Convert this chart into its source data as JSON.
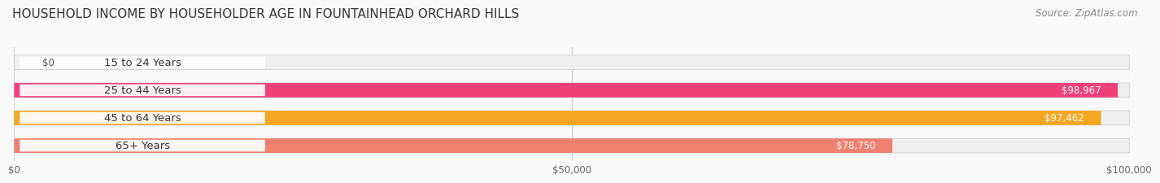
{
  "title": "HOUSEHOLD INCOME BY HOUSEHOLDER AGE IN FOUNTAINHEAD ORCHARD HILLS",
  "source": "Source: ZipAtlas.com",
  "categories": [
    "15 to 24 Years",
    "25 to 44 Years",
    "45 to 64 Years",
    "65+ Years"
  ],
  "values": [
    0,
    98967,
    97462,
    78750
  ],
  "bar_colors": [
    "#a8a8d8",
    "#f0407a",
    "#f5a623",
    "#f08070"
  ],
  "bar_bg_color": "#efefef",
  "value_labels": [
    "$0",
    "$98,967",
    "$97,462",
    "$78,750"
  ],
  "xlim": [
    0,
    100000
  ],
  "xticks": [
    0,
    50000,
    100000
  ],
  "xtick_labels": [
    "$0",
    "$50,000",
    "$100,000"
  ],
  "background_color": "#f9f9f9",
  "bar_height": 0.52,
  "rounding": 0.13,
  "title_fontsize": 11,
  "source_fontsize": 8.5,
  "label_fontsize": 9.5,
  "value_fontsize": 8.5
}
